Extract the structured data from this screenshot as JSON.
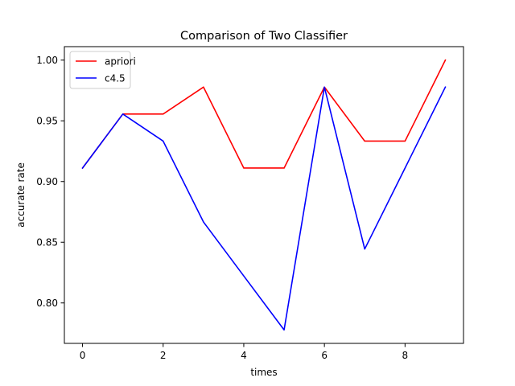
{
  "chart_data": {
    "type": "line",
    "title": "Comparison of Two Classifier",
    "xlabel": "times",
    "ylabel": "accurate rate",
    "x": [
      0,
      1,
      2,
      3,
      4,
      5,
      6,
      7,
      8,
      9
    ],
    "xlim": [
      -0.45,
      9.45
    ],
    "ylim": [
      0.7667,
      1.0111
    ],
    "xticks": [
      0,
      2,
      4,
      6,
      8
    ],
    "xtick_labels": [
      "0",
      "2",
      "4",
      "6",
      "8"
    ],
    "yticks": [
      0.8,
      0.85,
      0.9,
      0.95,
      1.0
    ],
    "ytick_labels": [
      "0.80",
      "0.85",
      "0.90",
      "0.95",
      "1.00"
    ],
    "grid": false,
    "legend_position": "top-left",
    "series": [
      {
        "name": "apriori",
        "color": "#ff0000",
        "values": [
          0.9111,
          0.9556,
          0.9556,
          0.9778,
          0.9111,
          0.9111,
          0.9778,
          0.9333,
          0.9333,
          1.0
        ]
      },
      {
        "name": "c4.5",
        "color": "#0000ff",
        "values": [
          0.9111,
          0.9556,
          0.9333,
          0.8667,
          0.8222,
          0.7778,
          0.9778,
          0.8444,
          0.9111,
          0.9778
        ]
      }
    ]
  }
}
